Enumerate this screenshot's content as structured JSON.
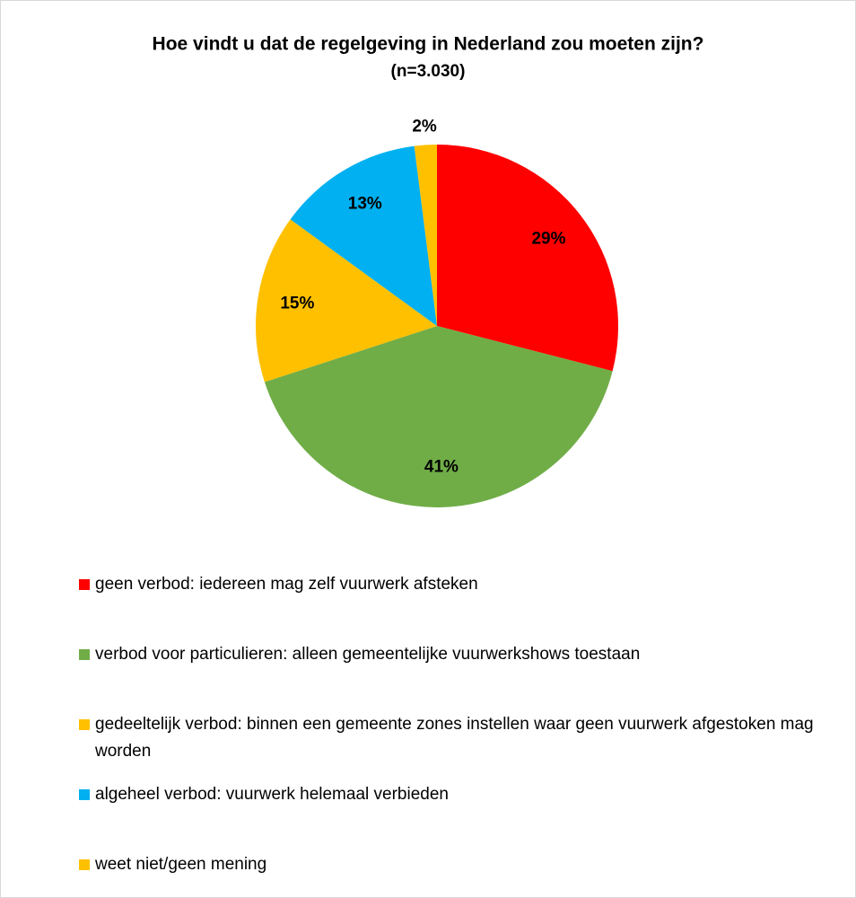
{
  "chart_data": {
    "type": "pie",
    "title": "Hoe vindt u dat de regelgeving in Nederland zou moeten zijn?",
    "subtitle": "(n=3.030)",
    "categories": [
      "geen verbod: iedereen mag zelf vuurwerk afsteken",
      "verbod voor particulieren: alleen gemeentelijke vuurwerkshows toestaan",
      "gedeeltelijk verbod: binnen een gemeente zones instellen waar geen vuurwerk afgestoken mag worden",
      "algeheel verbod: vuurwerk helemaal verbieden",
      "weet niet/geen mening"
    ],
    "values": [
      29,
      41,
      15,
      13,
      2
    ],
    "value_labels": [
      "29%",
      "41%",
      "15%",
      "13%",
      "2%"
    ],
    "colors": [
      "#ff0000",
      "#70ad47",
      "#ffc000",
      "#00b0f0",
      "#ffc000"
    ],
    "legend": "bottom"
  }
}
